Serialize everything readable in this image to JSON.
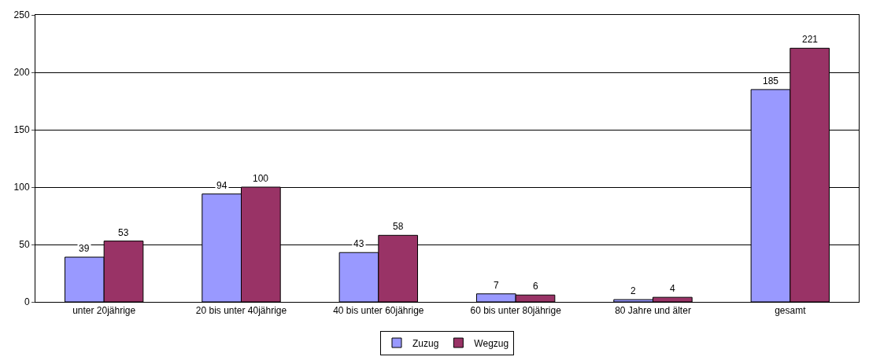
{
  "chart_data": {
    "type": "bar",
    "categories": [
      "unter 20jährige",
      "20 bis unter 40jährige",
      "40 bis unter 60jährige",
      "60 bis unter 80jährige",
      "80 Jahre und älter",
      "gesamt"
    ],
    "series": [
      {
        "name": "Zuzug",
        "color": "#9999ff",
        "values": [
          39,
          94,
          43,
          7,
          2,
          185
        ]
      },
      {
        "name": "Wegzug",
        "color": "#993366",
        "values": [
          53,
          100,
          58,
          6,
          4,
          221
        ]
      }
    ],
    "ylim": [
      0,
      250
    ],
    "yticks": [
      0,
      50,
      100,
      150,
      200,
      250
    ],
    "grid": "y",
    "legend": "bottom",
    "data_labels": true
  }
}
